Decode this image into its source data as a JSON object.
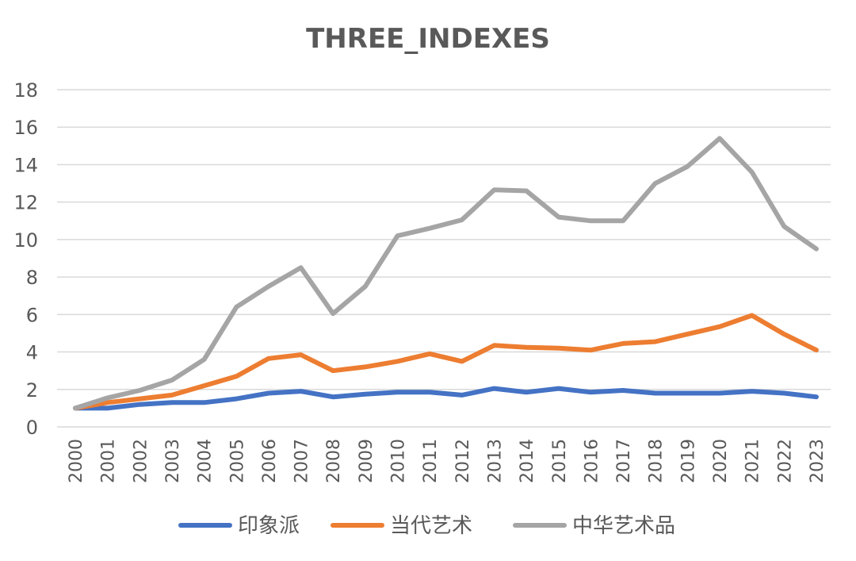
{
  "chart_data": {
    "type": "line",
    "title": "THREE_INDEXES",
    "xlabel": "",
    "ylabel": "",
    "ylim": [
      0,
      18
    ],
    "yticks": [
      "0",
      "2",
      "4",
      "6",
      "8",
      "10",
      "12",
      "14",
      "16",
      "18"
    ],
    "grid": true,
    "legend_position": "bottom",
    "categories": [
      "2000",
      "2001",
      "2002",
      "2003",
      "2004",
      "2005",
      "2006",
      "2007",
      "2008",
      "2009",
      "2010",
      "2011",
      "2012",
      "2013",
      "2014",
      "2015",
      "2016",
      "2017",
      "2018",
      "2019",
      "2020",
      "2021",
      "2022",
      "2023"
    ],
    "series": [
      {
        "name": "印象派",
        "color": "#4472c4",
        "values": [
          1.0,
          1.0,
          1.2,
          1.3,
          1.3,
          1.5,
          1.8,
          1.9,
          1.6,
          1.75,
          1.85,
          1.85,
          1.7,
          2.05,
          1.85,
          2.05,
          1.85,
          1.95,
          1.8,
          1.8,
          1.8,
          1.9,
          1.8,
          1.6
        ]
      },
      {
        "name": "当代艺术",
        "color": "#ed7d31",
        "values": [
          1.0,
          1.3,
          1.5,
          1.7,
          2.2,
          2.7,
          3.65,
          3.85,
          3.0,
          3.2,
          3.5,
          3.9,
          3.5,
          4.35,
          4.25,
          4.2,
          4.1,
          4.45,
          4.55,
          4.95,
          5.35,
          5.95,
          4.95,
          4.1
        ]
      },
      {
        "name": "中华艺术品",
        "color": "#a5a5a5",
        "values": [
          1.0,
          1.55,
          1.95,
          2.5,
          3.6,
          6.4,
          7.5,
          8.5,
          6.05,
          7.5,
          10.2,
          10.6,
          11.05,
          12.65,
          12.6,
          11.2,
          11.0,
          11.0,
          13.0,
          13.9,
          15.4,
          13.6,
          10.7,
          9.5
        ]
      }
    ]
  }
}
